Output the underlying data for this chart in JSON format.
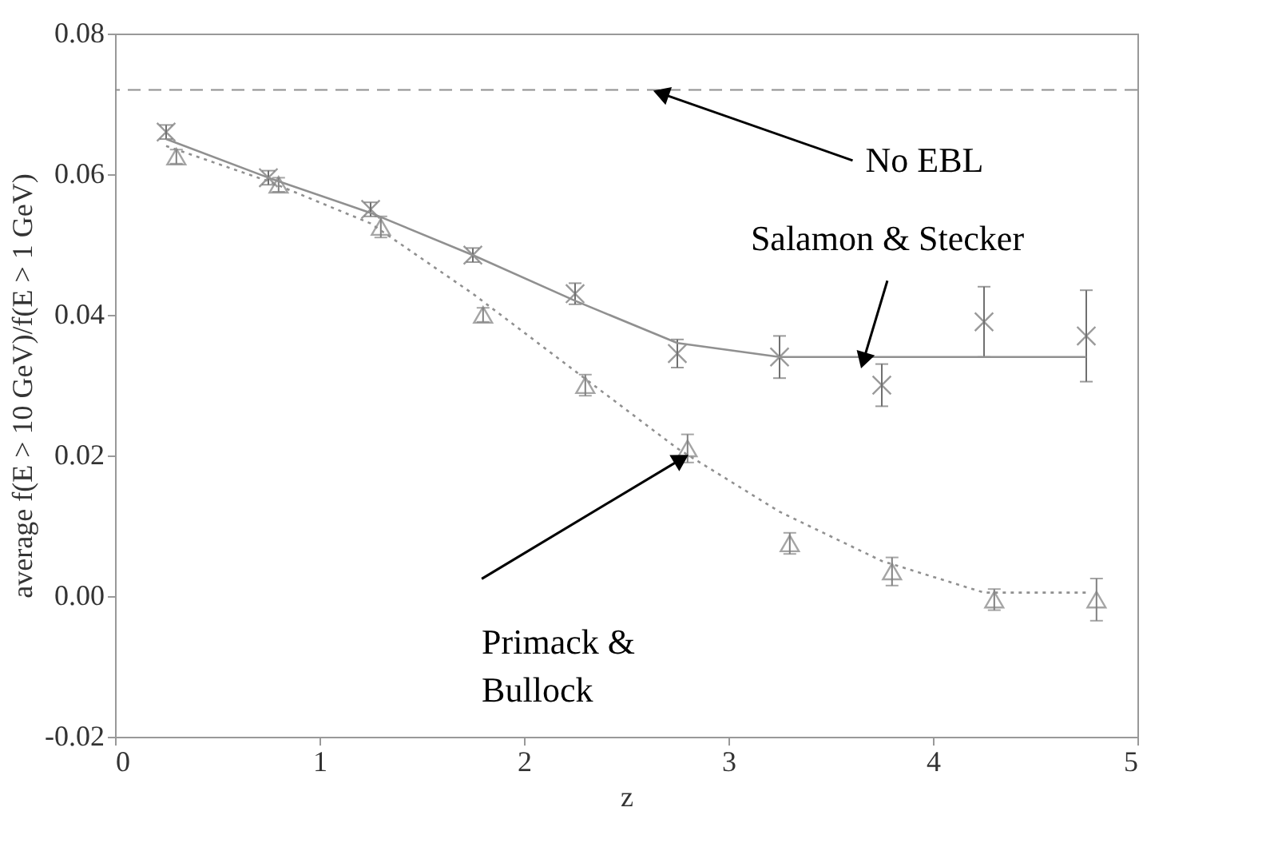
{
  "chart_data": {
    "type": "scatter",
    "xlabel": "z",
    "ylabel": "average f(E > 10 GeV)/f(E > 1 GeV)",
    "xlim": [
      0,
      5
    ],
    "xticks": [
      0,
      1,
      2,
      3,
      4,
      5
    ],
    "ylim": [
      -0.02,
      0.08
    ],
    "yticks": [
      {
        "value": -0.02,
        "label": "-0.02"
      },
      {
        "value": 0,
        "label": "0.00"
      },
      {
        "value": 0.02,
        "label": "0.02"
      },
      {
        "value": 0.04,
        "label": "0.04"
      },
      {
        "value": 0.06,
        "label": "0.06"
      },
      {
        "value": 0.08,
        "label": "0.08"
      }
    ],
    "grid": false,
    "legend": false,
    "series": [
      {
        "type": "scatter",
        "marker": "cross",
        "color": "#707070",
        "x": [
          0.25,
          0.75,
          1.25,
          1.75,
          2.25,
          2.75,
          3.25,
          3.75,
          4.25,
          4.75
        ],
        "values": [
          0.066,
          0.0595,
          0.055,
          0.0485,
          0.043,
          0.0345,
          0.034,
          0.03,
          0.039,
          0.037
        ],
        "errors": [
          0.001,
          0.001,
          0.001,
          0.001,
          0.0015,
          0.002,
          0.003,
          0.003,
          0.005,
          0.0065
        ]
      },
      {
        "type": "scatter",
        "marker": "triangle",
        "color": "#808080",
        "x": [
          0.3,
          0.8,
          1.3,
          1.8,
          2.3,
          2.8,
          3.3,
          3.8,
          4.3,
          4.8
        ],
        "values": [
          0.0625,
          0.0585,
          0.0525,
          0.04,
          0.03,
          0.021,
          0.0075,
          0.0035,
          -0.0005,
          -0.0005
        ],
        "errors": [
          0.001,
          0.001,
          0.0015,
          0.001,
          0.0015,
          0.002,
          0.0015,
          0.002,
          0.0015,
          0.003
        ]
      },
      {
        "type": "line",
        "line_style": "solid",
        "color": "#909090",
        "x": [
          0.25,
          0.75,
          1.25,
          1.75,
          2.25,
          2.75,
          3.25,
          4.75
        ],
        "values": [
          0.065,
          0.0595,
          0.0545,
          0.0485,
          0.042,
          0.036,
          0.034,
          0.034
        ]
      },
      {
        "type": "line",
        "line_style": "dotted",
        "color": "#909090",
        "x": [
          0.25,
          0.75,
          1.25,
          1.75,
          2.25,
          2.75,
          3.25,
          3.75,
          4.25,
          4.75
        ],
        "values": [
          0.064,
          0.059,
          0.053,
          0.043,
          0.032,
          0.021,
          0.012,
          0.005,
          0.0005,
          0.0005
        ]
      }
    ],
    "ref_lines": [
      {
        "axis": "y",
        "value": 0.072,
        "line_style": "dashed",
        "color": "#909090"
      }
    ],
    "annotations": [
      {
        "text": "No EBL",
        "x": 2.67,
        "y": 0.0715
      },
      {
        "text": "Salamon & Stecker",
        "x": 3.66,
        "y": 0.0335
      },
      {
        "text": "Primack &\nBullock",
        "x": 2.77,
        "y": 0.0195
      }
    ]
  }
}
